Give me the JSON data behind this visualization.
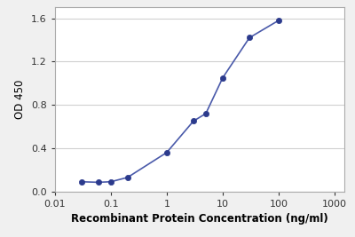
{
  "x_data": [
    0.03,
    0.06,
    0.1,
    0.2,
    1.0,
    3.0,
    5.0,
    10.0,
    30.0,
    100.0
  ],
  "y_data": [
    0.09,
    0.085,
    0.09,
    0.13,
    0.36,
    0.65,
    0.72,
    1.05,
    1.42,
    1.58
  ],
  "line_color": "#4a5aaa",
  "marker_color": "#2b3a8c",
  "xlabel": "Recombinant Protein Concentration (ng/ml)",
  "ylabel": "OD 450",
  "ylim": [
    0.0,
    1.7
  ],
  "yticks": [
    0.0,
    0.4,
    0.8,
    1.2,
    1.6
  ],
  "xtick_vals": [
    0.01,
    0.1,
    1,
    10,
    100,
    1000
  ],
  "xtick_labels": [
    "0.01",
    "0.1",
    "1",
    "10",
    "100",
    "1000"
  ],
  "xlim_left": 0.012,
  "xlim_right": 1500,
  "background_color": "#f0f0f0",
  "plot_bg_color": "#ffffff",
  "grid_color": "#d0d0d0",
  "spine_color": "#aaaaaa",
  "xlabel_fontsize": 8.5,
  "ylabel_fontsize": 8.5,
  "tick_fontsize": 8,
  "linewidth": 1.2,
  "markersize": 4.5
}
